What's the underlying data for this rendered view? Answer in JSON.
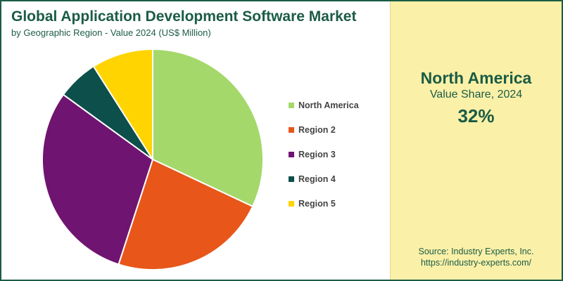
{
  "header": {
    "title": "Global Application Development Software Market",
    "subtitle": "by Geographic Region - Value 2024 (US$ Million)"
  },
  "highlight": {
    "region": "North America",
    "label": "Value Share, 2024",
    "value": "32%"
  },
  "source": {
    "line1": "Source: Industry Experts, Inc.",
    "line2": "https://industry-experts.com/"
  },
  "chart_data": {
    "type": "pie",
    "title": "Global Application Development Software Market",
    "subtitle": "by Geographic Region - Value 2024 (US$ Million)",
    "categories": [
      "North America",
      "Region 2",
      "Region 3",
      "Region 4",
      "Region 5"
    ],
    "values": [
      32,
      23,
      30,
      6,
      9
    ],
    "colors": [
      "#a5d86a",
      "#e8561a",
      "#6f1470",
      "#0d4f4a",
      "#ffd400"
    ],
    "start_angle_deg": 0,
    "direction": "clockwise",
    "legend_position": "right"
  }
}
